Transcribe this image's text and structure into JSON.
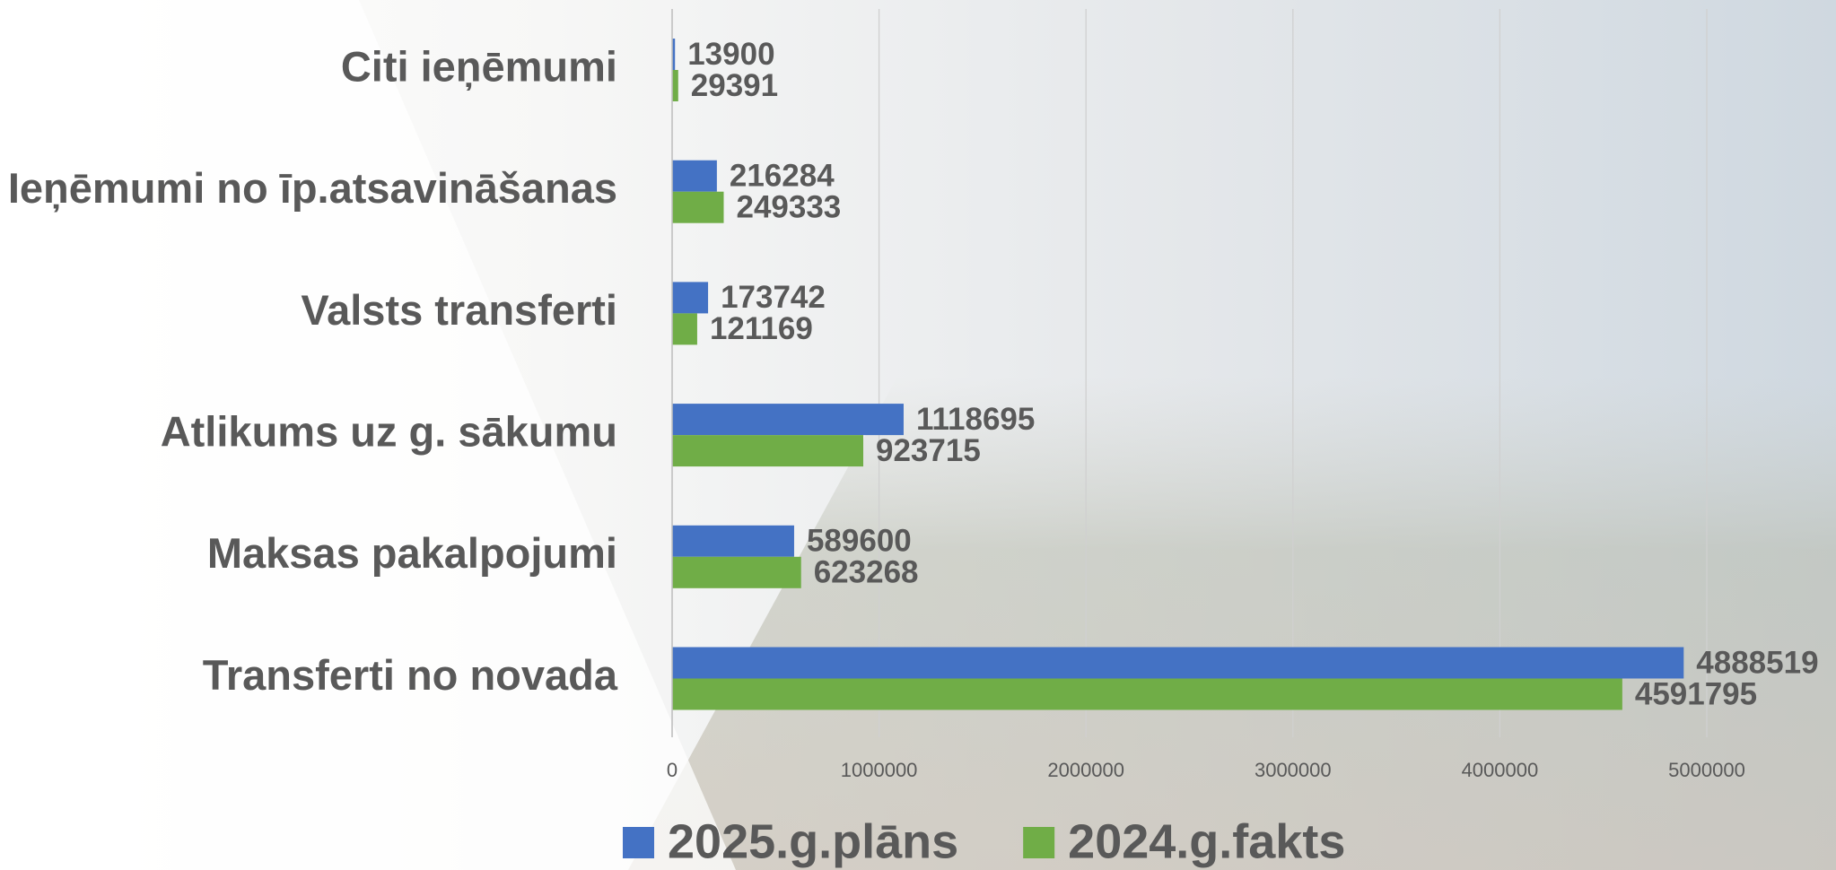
{
  "chart_data": {
    "type": "hbar",
    "categories": [
      "Citi ieņēmumi",
      "Ieņēmumi no īp.atsavināšanas",
      "Valsts transferti",
      "Atlikums uz g. sākumu",
      "Maksas pakalpojumi",
      "Transferti no novada"
    ],
    "series": [
      {
        "name": "2025.g.plāns",
        "color": "#4472c4",
        "values": [
          13900,
          216284,
          173742,
          1118695,
          589600,
          4888519
        ]
      },
      {
        "name": "2024.g.fakts",
        "color": "#70ad47",
        "values": [
          29391,
          249333,
          121169,
          923715,
          623268,
          4591795
        ]
      }
    ],
    "xlim": [
      0,
      5000000
    ],
    "xticks": [
      0,
      1000000,
      2000000,
      3000000,
      4000000,
      5000000
    ],
    "grid": true
  }
}
